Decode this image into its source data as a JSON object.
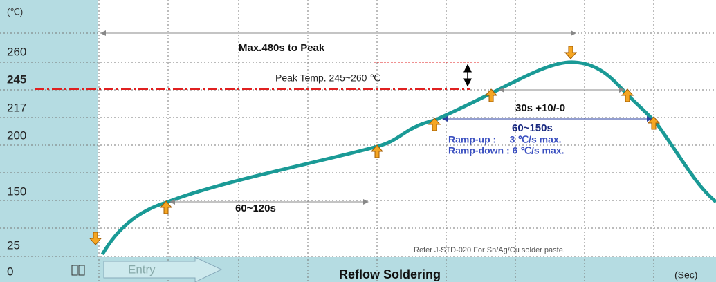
{
  "y_axis": {
    "unit": "(℃)",
    "labels": [
      "260",
      "245",
      "217",
      "200",
      "150",
      "25",
      "0"
    ]
  },
  "annotations": {
    "max_to_peak": "Max.480s to Peak",
    "peak_temp": "Peak Temp. 245~260 ℃",
    "preheat": "60~120s",
    "time_above_peak": "30s +10/-0",
    "time_above_liquidus": "60~150s",
    "ramp_up": "Ramp-up :     3 ℃/s max.",
    "ramp_down": "Ramp-down : 6 ℃/s max.",
    "reference": "Refer J-STD-020 For Sn/Ag/Cu solder paste."
  },
  "footer": {
    "entry": "Entry",
    "title": "Reflow Soldering",
    "unit": "(Sec)"
  }
}
